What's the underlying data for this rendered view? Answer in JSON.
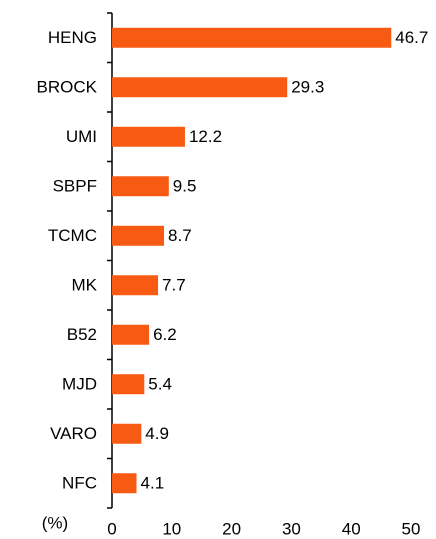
{
  "chart_data": {
    "type": "bar",
    "orientation": "horizontal",
    "xlabel": "(%)",
    "categories": [
      "HENG",
      "BROCK",
      "UMI",
      "SBPF",
      "TCMC",
      "MK",
      "B52",
      "MJD",
      "VARO",
      "NFC"
    ],
    "values": [
      46.7,
      29.3,
      12.2,
      9.5,
      8.7,
      7.7,
      6.2,
      5.4,
      4.9,
      4.1
    ],
    "color": "#f75a12",
    "xlim": [
      0,
      50
    ],
    "xticks": [
      0,
      10,
      20,
      30,
      40,
      50
    ],
    "grid": false
  }
}
